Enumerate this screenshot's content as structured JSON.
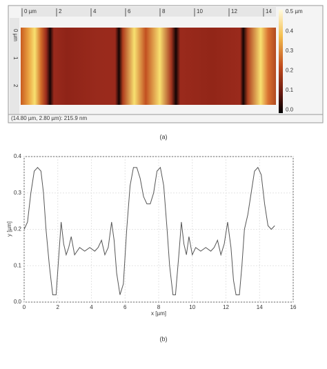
{
  "panel_a": {
    "x_ruler": [
      "0 µm",
      "2",
      "4",
      "6",
      "8",
      "10",
      "12",
      "14"
    ],
    "y_ruler": [
      "0 µm",
      "1",
      "2"
    ],
    "colorbar": [
      "0.5 µm",
      "0.4",
      "0.3",
      "0.2",
      "0.1",
      "0.0"
    ],
    "status": "(14.80 µm, 2.80 µm): 215.9 nm",
    "caption": "(a)"
  },
  "chart_data": {
    "type": "line",
    "xlabel": "x [µm]",
    "ylabel": "y [µm]",
    "x": [
      0,
      0.2,
      0.4,
      0.6,
      0.8,
      1.0,
      1.15,
      1.3,
      1.5,
      1.7,
      1.9,
      2.05,
      2.2,
      2.35,
      2.5,
      2.65,
      2.8,
      3.0,
      3.3,
      3.6,
      3.9,
      4.2,
      4.4,
      4.6,
      4.8,
      5.0,
      5.2,
      5.35,
      5.5,
      5.7,
      5.9,
      6.1,
      6.3,
      6.5,
      6.7,
      6.9,
      7.1,
      7.3,
      7.5,
      7.7,
      7.9,
      8.1,
      8.3,
      8.5,
      8.65,
      8.85,
      9.0,
      9.2,
      9.35,
      9.5,
      9.65,
      9.8,
      10.0,
      10.2,
      10.5,
      10.8,
      11.1,
      11.3,
      11.5,
      11.7,
      11.9,
      12.1,
      12.3,
      12.45,
      12.6,
      12.8,
      12.95,
      13.1,
      13.3,
      13.5,
      13.7,
      13.9,
      14.1,
      14.3,
      14.5,
      14.7,
      14.9
    ],
    "series": [
      {
        "color": "#555555",
        "values": [
          0.2,
          0.22,
          0.3,
          0.36,
          0.37,
          0.36,
          0.3,
          0.2,
          0.1,
          0.02,
          0.02,
          0.12,
          0.22,
          0.16,
          0.13,
          0.15,
          0.18,
          0.13,
          0.15,
          0.14,
          0.15,
          0.14,
          0.15,
          0.17,
          0.13,
          0.15,
          0.22,
          0.17,
          0.08,
          0.02,
          0.05,
          0.2,
          0.32,
          0.37,
          0.37,
          0.34,
          0.29,
          0.27,
          0.27,
          0.3,
          0.36,
          0.37,
          0.32,
          0.2,
          0.1,
          0.02,
          0.02,
          0.13,
          0.22,
          0.16,
          0.13,
          0.18,
          0.13,
          0.15,
          0.14,
          0.15,
          0.14,
          0.15,
          0.17,
          0.13,
          0.16,
          0.22,
          0.15,
          0.06,
          0.02,
          0.02,
          0.1,
          0.2,
          0.24,
          0.3,
          0.36,
          0.37,
          0.35,
          0.27,
          0.21,
          0.2,
          0.21
        ]
      }
    ],
    "xlim": [
      0,
      16
    ],
    "ylim": [
      0,
      0.4
    ],
    "xticks": [
      0,
      2,
      4,
      6,
      8,
      10,
      12,
      14,
      16
    ],
    "yticks": [
      {
        "value": 0,
        "label": "0.0"
      },
      0.1,
      0.2,
      0.3,
      0.4
    ],
    "grid": true
  },
  "caption_b": "(b)"
}
